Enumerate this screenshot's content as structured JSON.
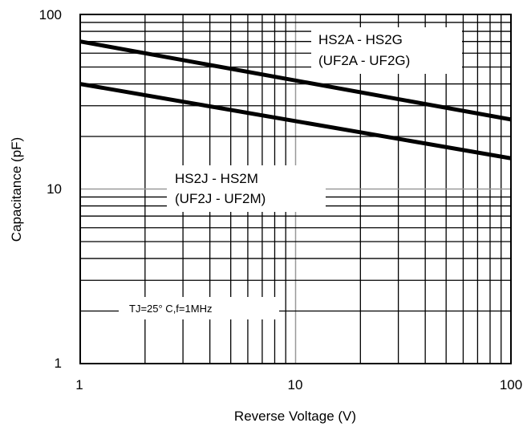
{
  "chart_data": {
    "type": "line",
    "xlabel": "Reverse Voltage (V)",
    "ylabel": "Capacitance (pF)",
    "x_scale": "log",
    "y_scale": "log",
    "xlim": [
      1,
      100
    ],
    "ylim": [
      1,
      100
    ],
    "x_ticks": [
      "1",
      "10",
      "100"
    ],
    "y_ticks": [
      "1",
      "10",
      "100"
    ],
    "grid": true,
    "series": [
      {
        "name": "HS2A - HS2G (UF2A - UF2G)",
        "x": [
          1,
          100
        ],
        "y": [
          70,
          25
        ]
      },
      {
        "name": "HS2J - HS2M (UF2J - UF2M)",
        "x": [
          1,
          100
        ],
        "y": [
          40,
          15
        ]
      }
    ],
    "annotations": {
      "series1_line1": "HS2A - HS2G",
      "series1_line2": "(UF2A  - UF2G)",
      "series2_line1": "HS2J - HS2M",
      "series2_line2": "(UF2J - UF2M)",
      "condition": "TJ=25° C,f=1MHz"
    }
  }
}
